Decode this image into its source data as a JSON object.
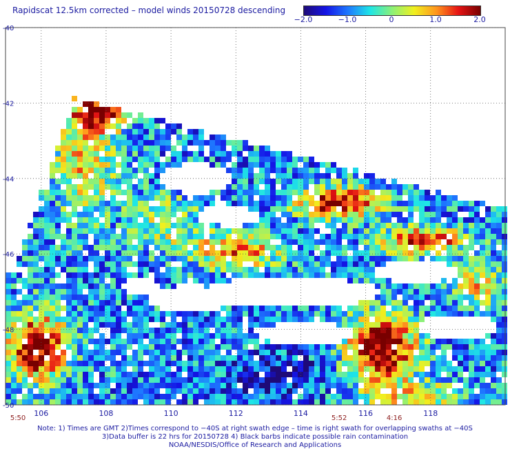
{
  "title": "Rapidscat 12.5km corrected – model winds 20150728 descending",
  "colorbar": {
    "labels": [
      "−2.0",
      "−1.0",
      "0",
      "1.0",
      "2.0"
    ],
    "values": [
      -2.0,
      -1.0,
      0,
      1.0,
      2.0
    ],
    "range": [
      -2.0,
      2.0
    ],
    "stops": [
      "#1e0a78",
      "#1414e6",
      "#1e78ff",
      "#1ee6e6",
      "#8cf078",
      "#f0f01e",
      "#ff961e",
      "#e61414",
      "#780000"
    ]
  },
  "map": {
    "lon_range": [
      104.9,
      120.3
    ],
    "lat_range": [
      -50.0,
      -40.0
    ],
    "lon_ticks": [
      106,
      108,
      110,
      112,
      114,
      116,
      118
    ],
    "lon_tick_labels": [
      "106",
      "108",
      "110",
      "112",
      "114",
      "116",
      "118"
    ],
    "lat_ticks": [
      -40,
      -42,
      -44,
      -46,
      -48,
      -50
    ],
    "lat_tick_labels": [
      "-40",
      "-42",
      "-44",
      "-46",
      "-48",
      "-50"
    ],
    "grid": "dotted"
  },
  "times": [
    {
      "label": "5:50",
      "lon": 105.3
    },
    {
      "label": "5:52",
      "lon": 115.2
    },
    {
      "label": "4:16",
      "lon": 116.9
    }
  ],
  "notes": [
    "Note: 1) Times are GMT 2)Times correspond to −40S at right swath edge – time is right swath for overlapping swaths at −40S",
    "3)Data buffer is 22 hrs for 20150728 4) Black barbs indicate possible rain contamination",
    "NOAA/NESDIS/Office of Research and Applications"
  ]
}
